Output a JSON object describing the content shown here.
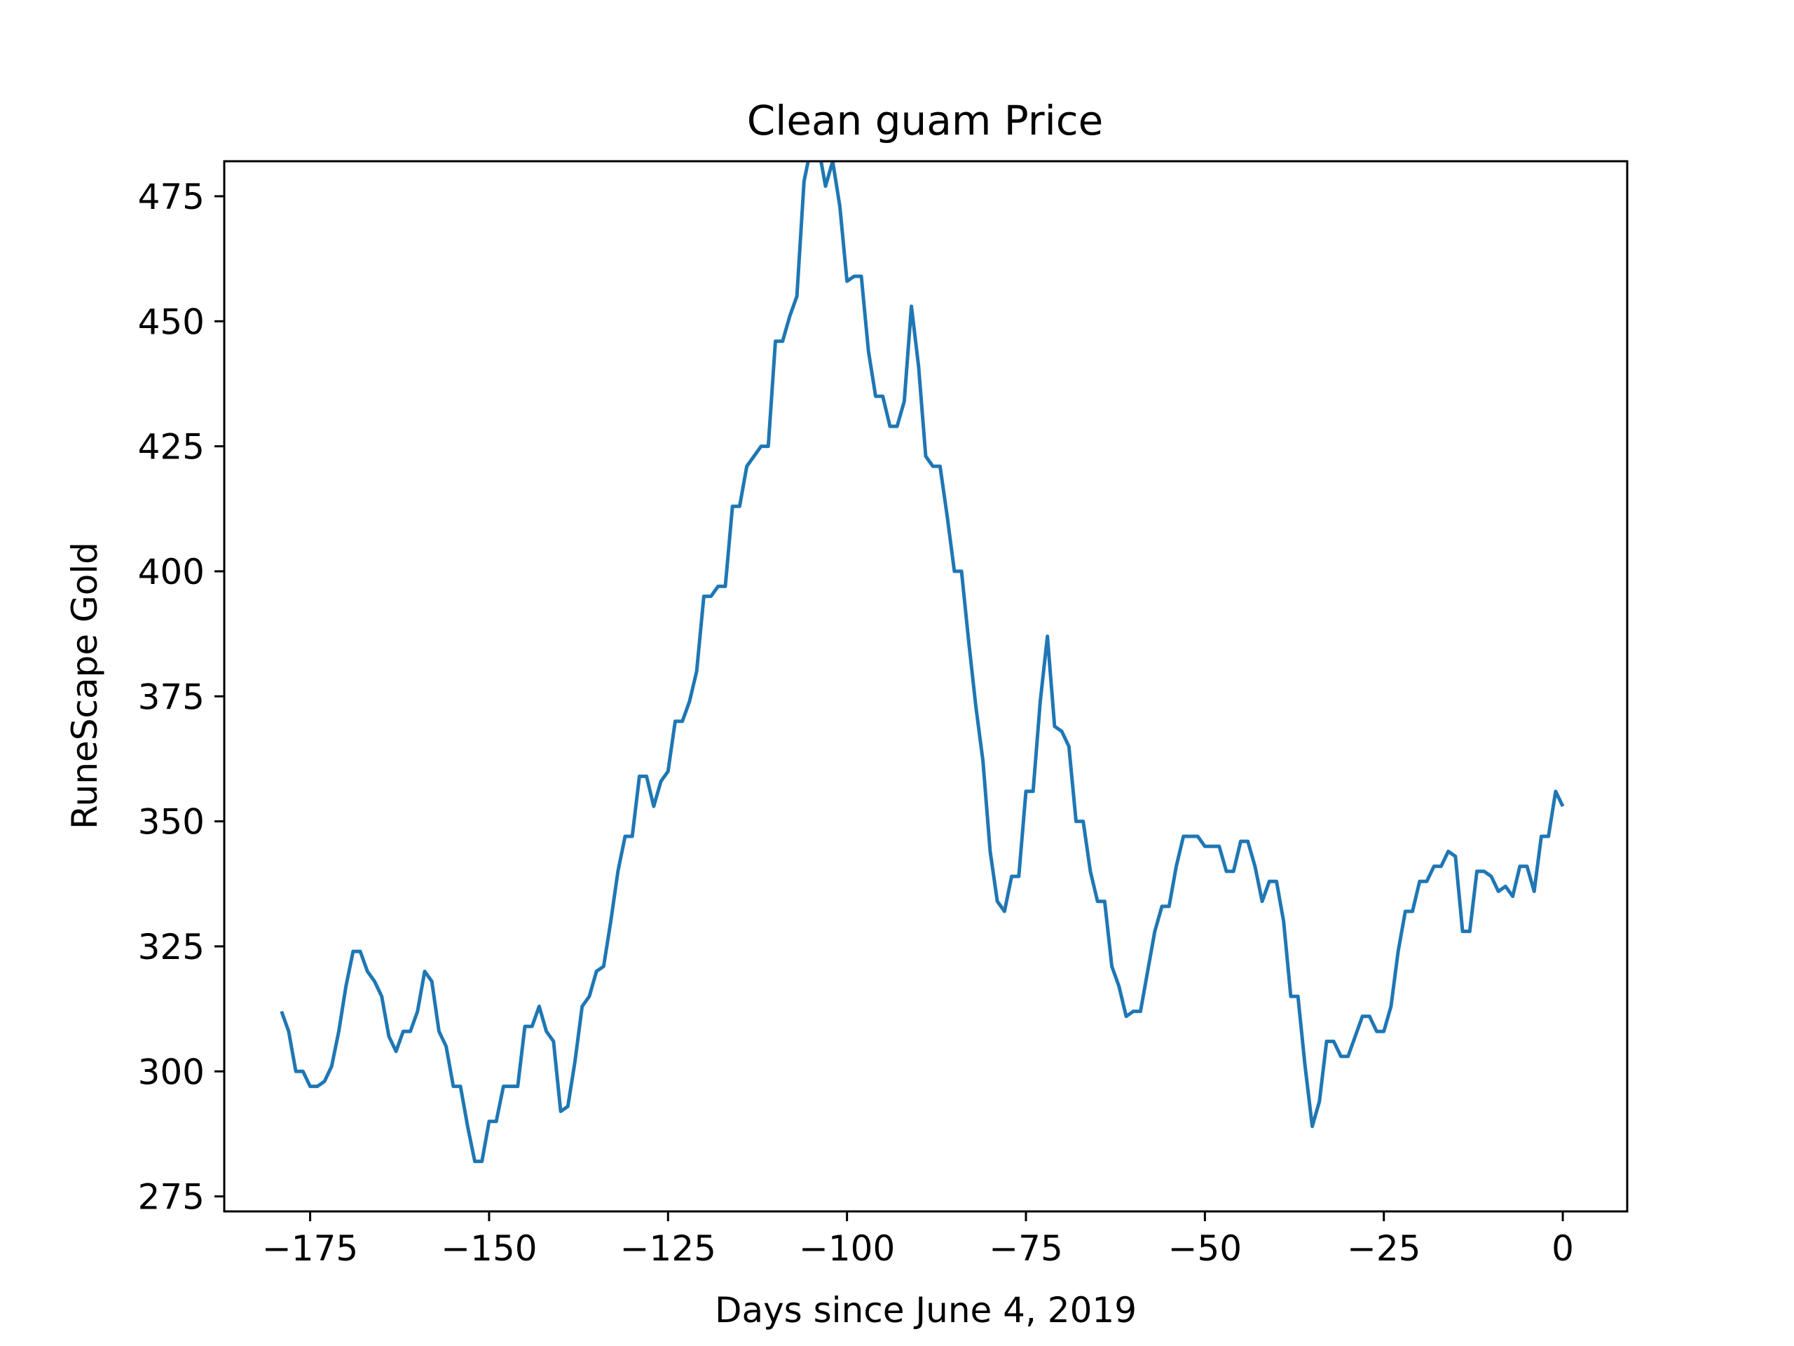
{
  "chart_data": {
    "type": "line",
    "title": "Clean guam Price",
    "xlabel": "Days since June 4, 2019",
    "ylabel": "RuneScape Gold",
    "xlim": [
      -187,
      9
    ],
    "ylim": [
      272,
      482
    ],
    "xticks": [
      -175,
      -150,
      -125,
      -100,
      -75,
      -50,
      -25,
      0
    ],
    "xtick_labels": [
      "−175",
      "−150",
      "−125",
      "−100",
      "−75",
      "−50",
      "−25",
      "0"
    ],
    "yticks": [
      275,
      300,
      325,
      350,
      375,
      400,
      425,
      450,
      475
    ],
    "ytick_labels": [
      "275",
      "300",
      "325",
      "350",
      "375",
      "400",
      "425",
      "450",
      "475"
    ],
    "grid": false,
    "legend": "none",
    "series": [
      {
        "color": "#1f77b4",
        "x": [
          -179,
          -178,
          -177,
          -176,
          -175,
          -174,
          -173,
          -172,
          -171,
          -170,
          -169,
          -168,
          -167,
          -166,
          -165,
          -164,
          -163,
          -162,
          -161,
          -160,
          -159,
          -158,
          -157,
          -156,
          -155,
          -154,
          -153,
          -152,
          -151,
          -150,
          -149,
          -148,
          -147,
          -146,
          -145,
          -144,
          -143,
          -142,
          -141,
          -140,
          -139,
          -138,
          -137,
          -136,
          -135,
          -134,
          -133,
          -132,
          -131,
          -130,
          -129,
          -128,
          -127,
          -126,
          -125,
          -124,
          -123,
          -122,
          -121,
          -120,
          -119,
          -118,
          -117,
          -116,
          -115,
          -114,
          -113,
          -112,
          -111,
          -110,
          -109,
          -108,
          -107,
          -106,
          -105,
          -104,
          -103,
          -102,
          -101,
          -100,
          -99,
          -98,
          -97,
          -96,
          -95,
          -94,
          -93,
          -92,
          -91,
          -90,
          -89,
          -88,
          -87,
          -86,
          -85,
          -84,
          -83,
          -82,
          -81,
          -80,
          -79,
          -78,
          -77,
          -76,
          -75,
          -74,
          -73,
          -72,
          -71,
          -70,
          -69,
          -68,
          -67,
          -66,
          -65,
          -64,
          -63,
          -62,
          -61,
          -60,
          -59,
          -58,
          -57,
          -56,
          -55,
          -54,
          -53,
          -52,
          -51,
          -50,
          -49,
          -48,
          -47,
          -46,
          -45,
          -44,
          -43,
          -42,
          -41,
          -40,
          -39,
          -38,
          -37,
          -36,
          -35,
          -34,
          -33,
          -32,
          -31,
          -30,
          -29,
          -28,
          -27,
          -26,
          -25,
          -24,
          -23,
          -22,
          -21,
          -20,
          -19,
          -18,
          -17,
          -16,
          -15,
          -14,
          -13,
          -12,
          -11,
          -10,
          -9,
          -8,
          -7,
          -6,
          -5,
          -4,
          -3,
          -2,
          -1,
          0
        ],
        "y": [
          312,
          308,
          300,
          300,
          297,
          297,
          298,
          301,
          308,
          317,
          324,
          324,
          320,
          318,
          315,
          307,
          304,
          308,
          308,
          312,
          320,
          318,
          308,
          305,
          297,
          297,
          289,
          282,
          282,
          290,
          290,
          297,
          297,
          297,
          309,
          309,
          313,
          308,
          306,
          292,
          293,
          302,
          313,
          315,
          320,
          321,
          330,
          340,
          347,
          347,
          359,
          359,
          353,
          358,
          360,
          370,
          370,
          374,
          380,
          395,
          395,
          397,
          397,
          413,
          413,
          421,
          423,
          425,
          425,
          446,
          446,
          451,
          455,
          478,
          485,
          485,
          477,
          482,
          473,
          458,
          459,
          459,
          444,
          435,
          435,
          429,
          429,
          434,
          453,
          441,
          423,
          421,
          421,
          411,
          400,
          400,
          386,
          373,
          362,
          344,
          334,
          332,
          339,
          339,
          356,
          356,
          374,
          387,
          369,
          368,
          365,
          350,
          350,
          340,
          334,
          334,
          321,
          317,
          311,
          312,
          312,
          320,
          328,
          333,
          333,
          341,
          347,
          347,
          347,
          345,
          345,
          345,
          340,
          340,
          346,
          346,
          341,
          334,
          338,
          338,
          330,
          315,
          315,
          301,
          289,
          294,
          306,
          306,
          303,
          303,
          307,
          311,
          311,
          308,
          308,
          313,
          324,
          332,
          332,
          338,
          338,
          341,
          341,
          344,
          343,
          328,
          328,
          340,
          340,
          339,
          336,
          337,
          335,
          341,
          341,
          336,
          347,
          347,
          356,
          353
        ]
      }
    ]
  }
}
